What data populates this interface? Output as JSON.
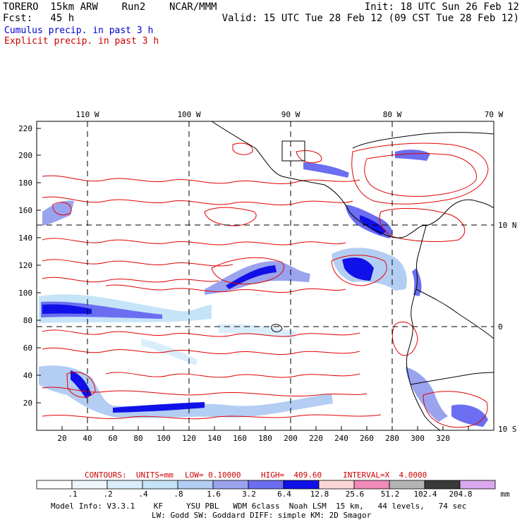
{
  "header": {
    "model": "TORERO  15km ARW    Run2    NCAR/MMM",
    "fcst": "Fcst:   45 h",
    "init": "Init: 18 UTC Sun 26 Feb 12",
    "valid": "Valid: 15 UTC Tue 28 Feb 12 (09 CST Tue 28 Feb 12)"
  },
  "legend": {
    "cumulus": "Cumulus precip. in past 3 h",
    "explicit": "Explicit precip. in past 3 h"
  },
  "map": {
    "top_lon_labels": [
      "110 W",
      "100 W",
      "90 W",
      "80 W",
      "70 W"
    ],
    "right_lat_labels": [
      "10 N",
      "0",
      "10 S"
    ],
    "left_y_ticks": [
      "220",
      "200",
      "180",
      "160",
      "140",
      "120",
      "100",
      "80",
      "60",
      "40",
      "20"
    ],
    "bottom_x_ticks": [
      "20",
      "40",
      "60",
      "80",
      "100",
      "120",
      "140",
      "160",
      "180",
      "200",
      "220",
      "240",
      "260",
      "280",
      "300",
      "320"
    ]
  },
  "contour_info": {
    "units": "CONTOURS:  UNITS=mm",
    "low": "LOW= 0.10000",
    "high": "HIGH=  409.60",
    "interval": "INTERVAL=X  4.0000"
  },
  "colorbar": {
    "labels": [
      ".1",
      ".2",
      ".4",
      ".8",
      "1.6",
      "3.2",
      "6.4",
      "12.8",
      "25.6",
      "51.2",
      "102.4",
      "204.8"
    ],
    "unit": "mm",
    "colors": [
      "#ffffff",
      "#eef6fb",
      "#daeefa",
      "#c6e4f7",
      "#b3cdf3",
      "#9aa3ee",
      "#6b6ef0",
      "#1010e8",
      "#fcd6d6",
      "#f08ab8",
      "#b4b4b4",
      "#3a3a3a",
      "#d9a8ee"
    ]
  },
  "footer": {
    "line1": "Model Info: V3.3.1    KF     YSU PBL   WDM 6class  Noah LSM  15 km,   44 levels,   74 sec",
    "line2": "LW: Godd SW: Goddard DIFF: simple KM: 2D Smagor"
  }
}
